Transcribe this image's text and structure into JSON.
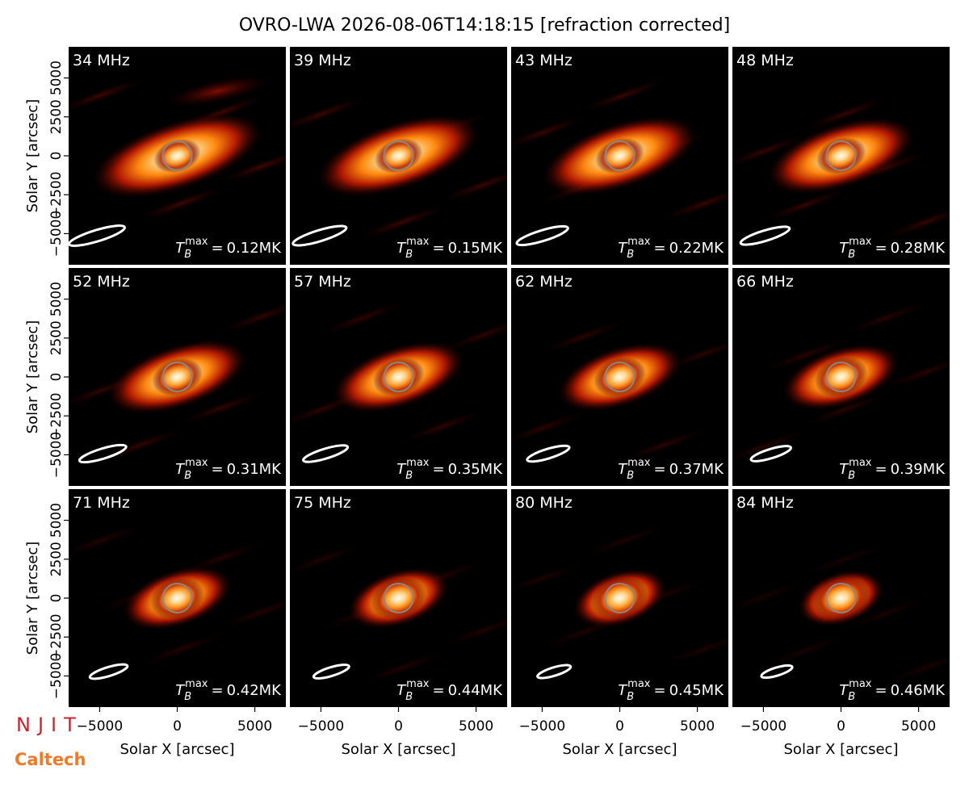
{
  "chart_data": {
    "type": "image_grid",
    "title": "OVRO-LWA 2026-08-06T14:18:15 [refraction corrected]",
    "xlabel": "Solar X [arcsec]",
    "ylabel": "Solar Y [arcsec]",
    "xlim": [
      -7000,
      7000
    ],
    "ylim": [
      -7000,
      7000
    ],
    "xticks": [
      {
        "value": -5000,
        "label": "−5000"
      },
      0,
      5000
    ],
    "yticks": [
      {
        "value": -5000,
        "label": "−5000"
      },
      {
        "value": -2500,
        "label": "−2500"
      },
      0,
      2500,
      5000
    ],
    "tb_symbol": {
      "base": "T",
      "sub": "B",
      "sup": "max",
      "eq": "="
    },
    "panels": [
      {
        "label": "34 MHz",
        "tb_max": {
          "value": 0.12,
          "label": "0.12MK"
        }
      },
      {
        "label": "39 MHz",
        "tb_max": {
          "value": 0.15,
          "label": "0.15MK"
        }
      },
      {
        "label": "43 MHz",
        "tb_max": {
          "value": 0.22,
          "label": "0.22MK"
        }
      },
      {
        "label": "48 MHz",
        "tb_max": {
          "value": 0.28,
          "label": "0.28MK"
        }
      },
      {
        "label": "52 MHz",
        "tb_max": {
          "value": 0.31,
          "label": "0.31MK"
        }
      },
      {
        "label": "57 MHz",
        "tb_max": {
          "value": 0.35,
          "label": "0.35MK"
        }
      },
      {
        "label": "62 MHz",
        "tb_max": {
          "value": 0.37,
          "label": "0.37MK"
        }
      },
      {
        "label": "66 MHz",
        "tb_max": {
          "value": 0.39,
          "label": "0.39MK"
        }
      },
      {
        "label": "71 MHz",
        "tb_max": {
          "value": 0.42,
          "label": "0.42MK"
        }
      },
      {
        "label": "75 MHz",
        "tb_max": {
          "value": 0.44,
          "label": "0.44MK"
        }
      },
      {
        "label": "80 MHz",
        "tb_max": {
          "value": 0.45,
          "label": "0.45MK"
        }
      },
      {
        "label": "84 MHz",
        "tb_max": {
          "value": 0.46,
          "label": "0.46MK"
        }
      }
    ]
  },
  "logos": [
    "NJIT",
    "Caltech"
  ]
}
